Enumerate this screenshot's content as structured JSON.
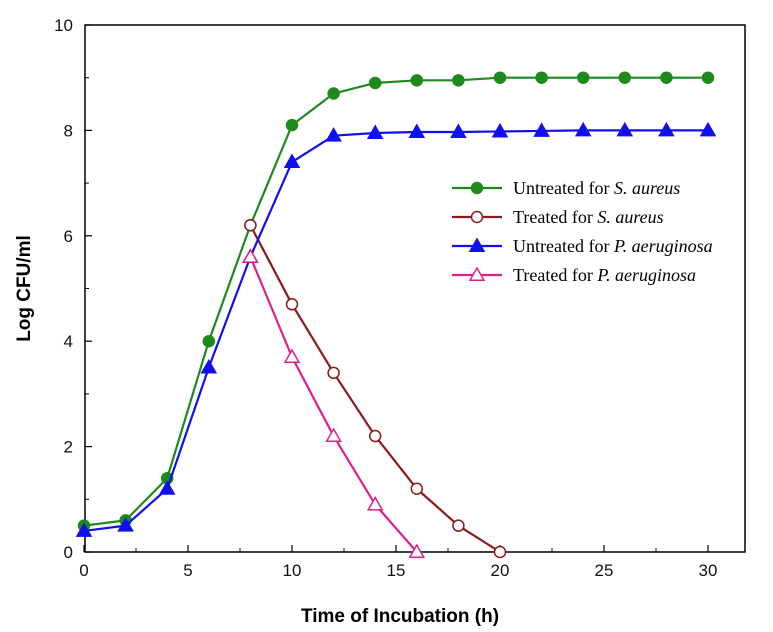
{
  "chart_data": {
    "type": "line",
    "xlabel": "Time of Incubation (h)",
    "ylabel": "Log CFU/ml",
    "xlim": [
      0,
      31
    ],
    "ylim": [
      0,
      10
    ],
    "xticks": [
      0,
      5,
      10,
      15,
      20,
      25,
      30
    ],
    "yticks": [
      0,
      2,
      4,
      6,
      8,
      10
    ],
    "xtick_labels": [
      "0",
      "5",
      "10",
      "15",
      "20",
      "25",
      "30"
    ],
    "ytick_labels": [
      "0",
      "2",
      "4",
      "6",
      "8",
      "10"
    ],
    "legend_position": "right",
    "grid": false,
    "series": [
      {
        "name_prefix": "Untreated for ",
        "name_italic": "S. aureus",
        "color": "#1e8a1e",
        "marker": "circle-filled",
        "x": [
          0,
          2,
          4,
          6,
          8,
          10,
          12,
          14,
          16,
          18,
          20,
          22,
          24,
          26,
          28,
          30
        ],
        "y": [
          0.5,
          0.6,
          1.4,
          4.0,
          6.2,
          8.1,
          8.7,
          8.9,
          8.95,
          8.95,
          9.0,
          9.0,
          9.0,
          9.0,
          9.0,
          9.0
        ]
      },
      {
        "name_prefix": "Treated for ",
        "name_italic": "S. aureus",
        "color": "#8b1a1a",
        "marker": "circle-open",
        "x": [
          8,
          10,
          12,
          14,
          16,
          18,
          20
        ],
        "y": [
          6.2,
          4.7,
          3.4,
          2.2,
          1.2,
          0.5,
          0.0
        ]
      },
      {
        "name_prefix": "Untreated for ",
        "name_italic": "P. aeruginosa",
        "color": "#1010ee",
        "marker": "triangle-filled",
        "x": [
          0,
          2,
          4,
          6,
          8,
          10,
          12,
          14,
          16,
          18,
          20,
          22,
          24,
          26,
          28,
          30
        ],
        "y": [
          0.4,
          0.5,
          1.2,
          3.5,
          5.6,
          7.4,
          7.9,
          7.95,
          7.97,
          7.97,
          7.98,
          7.99,
          8.0,
          8.0,
          8.0,
          8.0
        ]
      },
      {
        "name_prefix": "Treated for ",
        "name_italic": "P. aeruginosa",
        "color": "#e0208a",
        "marker": "triangle-open",
        "x": [
          8,
          10,
          12,
          14,
          16
        ],
        "y": [
          5.6,
          3.7,
          2.2,
          0.9,
          0.0
        ]
      }
    ]
  }
}
